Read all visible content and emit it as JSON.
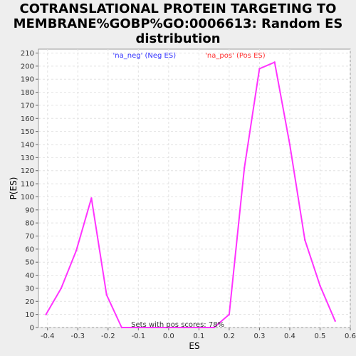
{
  "chart_data": {
    "type": "line",
    "title_lines": [
      "COTRANSLATIONAL PROTEIN TARGETING TO",
      "MEMBRANE%GOBP%GO:0006613: Random ES",
      "distribution"
    ],
    "xlabel": "ES",
    "ylabel": "P(ES)",
    "xlim": [
      -0.43,
      0.6
    ],
    "ylim": [
      0,
      213
    ],
    "xticks": [
      -0.4,
      -0.3,
      -0.2,
      -0.1,
      0.0,
      0.1,
      0.2,
      0.3,
      0.4,
      0.5,
      0.6
    ],
    "xtick_labels": [
      "-0.4",
      "-0.3",
      "-0.2",
      "-0.1",
      "0.0",
      "0.1",
      "0.2",
      "0.3",
      "0.4",
      "0.5",
      "0.6"
    ],
    "yticks": [
      0,
      10,
      20,
      30,
      40,
      50,
      60,
      70,
      80,
      90,
      100,
      110,
      120,
      130,
      140,
      150,
      160,
      170,
      180,
      190,
      200,
      210
    ],
    "grid": true,
    "legend": [
      {
        "label": "'na_neg' (Neg ES)",
        "color": "#3333ff"
      },
      {
        "label": "'na_pos' (Pos ES)",
        "color": "#ff3333"
      }
    ],
    "annotation": "Sets with pos scores: 78%",
    "series": [
      {
        "color": "#ff33ff",
        "x": [
          -0.405,
          -0.355,
          -0.305,
          -0.255,
          -0.205,
          -0.155,
          -0.105,
          -0.055,
          0.0,
          0.05,
          0.1,
          0.15,
          0.2,
          0.25,
          0.3,
          0.35,
          0.4,
          0.45,
          0.5,
          0.55
        ],
        "y": [
          10,
          30,
          59,
          99,
          25,
          0,
          0,
          0,
          0,
          0,
          0,
          0,
          10,
          122,
          198,
          203,
          140,
          67,
          32,
          5
        ]
      }
    ]
  }
}
